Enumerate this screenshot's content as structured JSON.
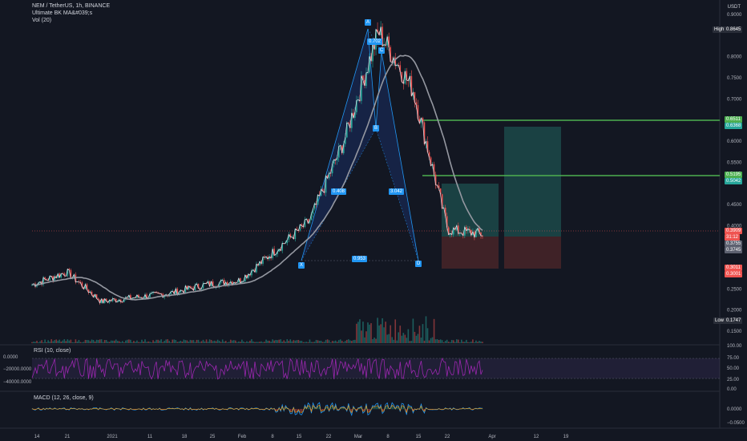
{
  "header": {
    "symbol_line": "NEM / TetherUS, 1h, BINANCE",
    "indicator1": "Ultimate BK MA&#039;s",
    "indicator2": "Vol (20)",
    "currency": "USDT"
  },
  "rsi": {
    "title": "RSI (10, close)",
    "levels": [
      "100.00",
      "75.00",
      "50.00",
      "25.00",
      "0.00"
    ],
    "left_levels": [
      "0.0000",
      "−20000.0000",
      "−40000.0000"
    ]
  },
  "macd": {
    "title": "MACD (12, 26, close, 9)",
    "levels": [
      "0.0000",
      "−0.0500"
    ]
  },
  "price_axis": [
    "0.9000",
    "0.8000",
    "0.7500",
    "0.7000",
    "0.6500",
    "0.6000",
    "0.5500",
    "0.4500",
    "0.4000",
    "0.3500",
    "0.2500",
    "0.2000",
    "0.1500"
  ],
  "price_tags": {
    "high": "High",
    "high_val": "0.8645",
    "tp2a": "0.6511",
    "tp2b": "0.6368",
    "tp1a": "0.5195",
    "tp1b": "0.5042",
    "cur": "0.3909",
    "cur2": "31:12",
    "e1": "0.3755",
    "e2": "0.3745",
    "sl1": "0.3011",
    "sl2": "0.3001",
    "low": "Low",
    "low_val": "0.1747"
  },
  "time_axis": [
    "14",
    "21",
    "2021",
    "11",
    "18",
    "25",
    "Feb",
    "8",
    "15",
    "22",
    "Mar",
    "8",
    "15",
    "22",
    "Apr",
    "12",
    "19"
  ],
  "pattern": {
    "points": [
      "X",
      "A",
      "B",
      "C",
      "D"
    ],
    "ratios": [
      "0.702",
      "0.408",
      "3.042",
      "0.953"
    ]
  },
  "chart_data": {
    "type": "line",
    "title": "NEM / TetherUS, 1h, BINANCE",
    "xlabel": "",
    "ylabel": "",
    "ylim": [
      0.15,
      0.9
    ],
    "x": [
      "14",
      "21",
      "2021",
      "11",
      "18",
      "25",
      "Feb",
      "8",
      "15",
      "22",
      "Mar",
      "8",
      "15",
      "22"
    ],
    "series": [
      {
        "name": "NEM/USDT",
        "values": [
          0.26,
          0.29,
          0.22,
          0.23,
          0.24,
          0.26,
          0.27,
          0.34,
          0.41,
          0.6,
          0.86,
          0.72,
          0.39,
          0.38
        ]
      }
    ],
    "levels": {
      "high": 0.8645,
      "low": 0.1747,
      "tp2": 0.6511,
      "tp1": 0.5195,
      "entry": 0.3755,
      "stop": 0.3011
    },
    "grid": false
  },
  "colors": {
    "bg": "#131722",
    "up": "#26a69a",
    "down": "#ef5350",
    "ma": "#b0b3b8",
    "green": "#4caf50",
    "rsi": "#9c27b0"
  }
}
